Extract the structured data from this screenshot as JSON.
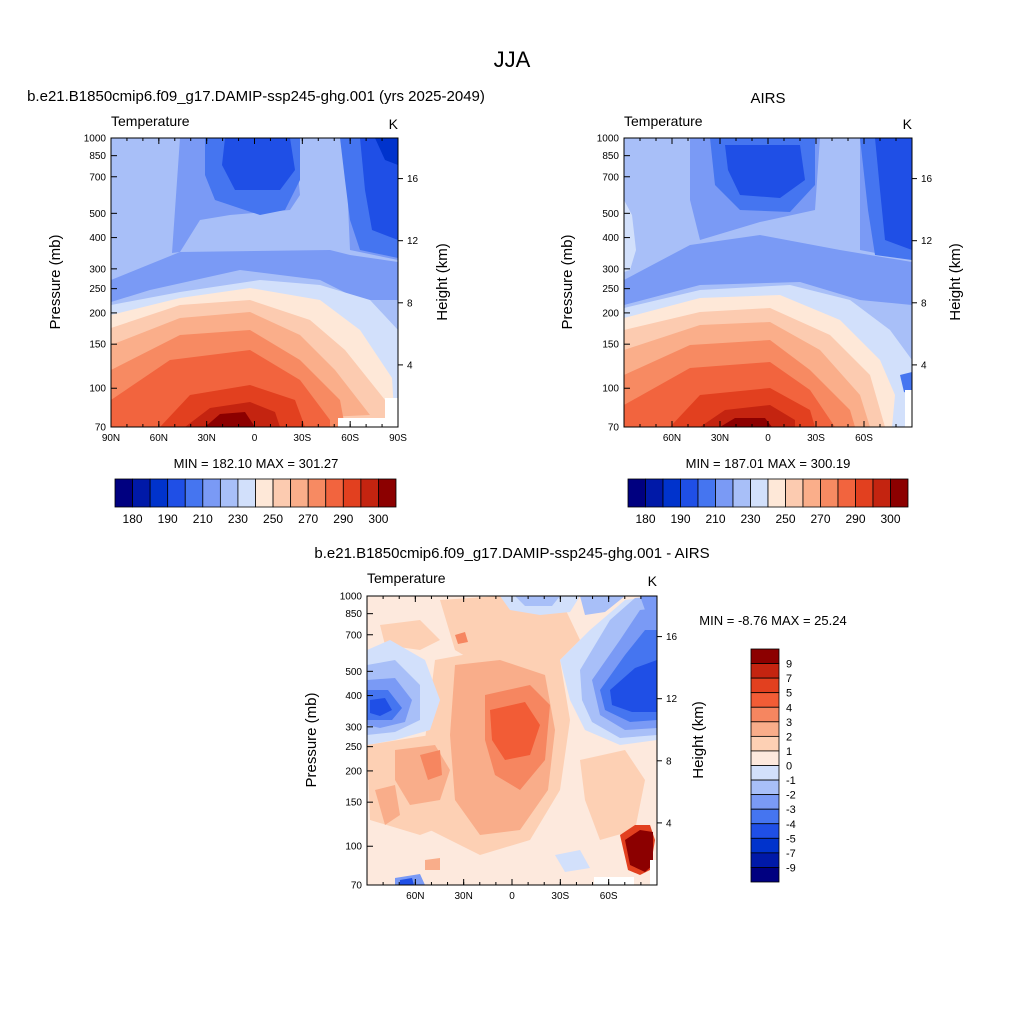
{
  "page_title": "JJA",
  "colors": {
    "temp_scale": [
      "#000080",
      "#0019a8",
      "#0033cc",
      "#1f4fe6",
      "#4575f0",
      "#7a9af5",
      "#a8bff8",
      "#d2e0fb",
      "#fee8d8",
      "#fccbb0",
      "#faae8a",
      "#f78a62",
      "#f2643e",
      "#e2401f",
      "#c42410",
      "#8c0000"
    ],
    "diff_scale": [
      "#000080",
      "#0019a8",
      "#0033cc",
      "#1f4fe6",
      "#4575f0",
      "#7a9af5",
      "#a8bff8",
      "#d2e0fb",
      "#fde9dd",
      "#fdd0b4",
      "#f9ad8a",
      "#f68660",
      "#f25c36",
      "#e2401f",
      "#c42410",
      "#8c0000"
    ]
  },
  "charts": [
    {
      "title": "b.e21.B1850cmip6.f09_g17.DAMIP-ssp245-ghg.001 (yrs 2025-2049)",
      "variable": "Temperature",
      "units": "K",
      "ylabel": "Pressure (mb)",
      "ylabel_right": "Height (km)",
      "stats": "MIN = 182.10   MAX = 301.27"
    },
    {
      "title": "AIRS",
      "variable": "Temperature",
      "units": "K",
      "ylabel": "Pressure (mb)",
      "ylabel_right": "Height (km)",
      "stats": "MIN = 187.01   MAX = 300.19"
    },
    {
      "title": "b.e21.B1850cmip6.f09_g17.DAMIP-ssp245-ghg.001 - AIRS",
      "variable": "Temperature",
      "units": "K",
      "ylabel": "Pressure (mb)",
      "ylabel_right": "Height (km)",
      "stats": "MIN =  -8.76   MAX =  25.24"
    }
  ],
  "chart_data": [
    {
      "type": "heatmap",
      "title": "b.e21.B1850cmip6.f09_g17.DAMIP-ssp245-ghg.001 (yrs 2025-2049)",
      "subtitle": "Temperature",
      "units": "K",
      "xlabel": "",
      "ylabel": "Pressure (mb)",
      "y2label": "Height (km)",
      "x_ticks": [
        "90N",
        "60N",
        "30N",
        "0",
        "30S",
        "60S",
        "90S"
      ],
      "x_tick_values": [
        90,
        60,
        30,
        0,
        -30,
        -60,
        -90
      ],
      "xlim": [
        90,
        -90
      ],
      "y_ticks": [
        "70",
        "100",
        "150",
        "200",
        "250",
        "300",
        "400",
        "500",
        "700",
        "850",
        "1000"
      ],
      "y_tick_values": [
        70,
        100,
        150,
        200,
        250,
        300,
        400,
        500,
        700,
        850,
        1000
      ],
      "ylim": [
        1000,
        70
      ],
      "y2_ticks": [
        "4",
        "8",
        "12",
        "16"
      ],
      "y2_tick_values": [
        4,
        8,
        12,
        16
      ],
      "levels": [
        180,
        185,
        190,
        200,
        210,
        220,
        230,
        240,
        250,
        260,
        270,
        280,
        290,
        295,
        300
      ],
      "colorbar_labels": [
        "180",
        "190",
        "210",
        "230",
        "250",
        "270",
        "290",
        "300"
      ],
      "min": 182.1,
      "max": 301.27
    },
    {
      "type": "heatmap",
      "title": "AIRS",
      "subtitle": "Temperature",
      "units": "K",
      "xlabel": "",
      "ylabel": "Pressure (mb)",
      "y2label": "Height (km)",
      "x_ticks": [
        "60N",
        "30N",
        "0",
        "30S",
        "60S"
      ],
      "x_tick_values": [
        60,
        30,
        0,
        -30,
        -60
      ],
      "xlim": [
        90,
        -90
      ],
      "y_ticks": [
        "70",
        "100",
        "150",
        "200",
        "250",
        "300",
        "400",
        "500",
        "700",
        "850",
        "1000"
      ],
      "y_tick_values": [
        70,
        100,
        150,
        200,
        250,
        300,
        400,
        500,
        700,
        850,
        1000
      ],
      "ylim": [
        1000,
        70
      ],
      "y2_ticks": [
        "4",
        "8",
        "12",
        "16"
      ],
      "y2_tick_values": [
        4,
        8,
        12,
        16
      ],
      "levels": [
        180,
        185,
        190,
        200,
        210,
        220,
        230,
        240,
        250,
        260,
        270,
        280,
        290,
        295,
        300
      ],
      "colorbar_labels": [
        "180",
        "190",
        "210",
        "230",
        "250",
        "270",
        "290",
        "300"
      ],
      "min": 187.01,
      "max": 300.19
    },
    {
      "type": "heatmap",
      "title": "b.e21.B1850cmip6.f09_g17.DAMIP-ssp245-ghg.001 - AIRS",
      "subtitle": "Temperature",
      "units": "K",
      "xlabel": "",
      "ylabel": "Pressure (mb)",
      "y2label": "Height (km)",
      "x_ticks": [
        "60N",
        "30N",
        "0",
        "30S",
        "60S"
      ],
      "x_tick_values": [
        60,
        30,
        0,
        -30,
        -60
      ],
      "xlim": [
        90,
        -90
      ],
      "y_ticks": [
        "70",
        "100",
        "150",
        "200",
        "250",
        "300",
        "400",
        "500",
        "700",
        "850",
        "1000"
      ],
      "y_tick_values": [
        70,
        100,
        150,
        200,
        250,
        300,
        400,
        500,
        700,
        850,
        1000
      ],
      "ylim": [
        1000,
        70
      ],
      "y2_ticks": [
        "4",
        "8",
        "12",
        "16"
      ],
      "y2_tick_values": [
        4,
        8,
        12,
        16
      ],
      "levels": [
        -9,
        -7,
        -5,
        -4,
        -3,
        -2,
        -1,
        0,
        1,
        2,
        3,
        4,
        5,
        7,
        9
      ],
      "colorbar_labels": [
        "9",
        "7",
        "5",
        "4",
        "3",
        "2",
        "1",
        "0",
        "-1",
        "-2",
        "-3",
        "-4",
        "-5",
        "-7",
        "-9"
      ],
      "min": -8.76,
      "max": 25.24
    }
  ]
}
